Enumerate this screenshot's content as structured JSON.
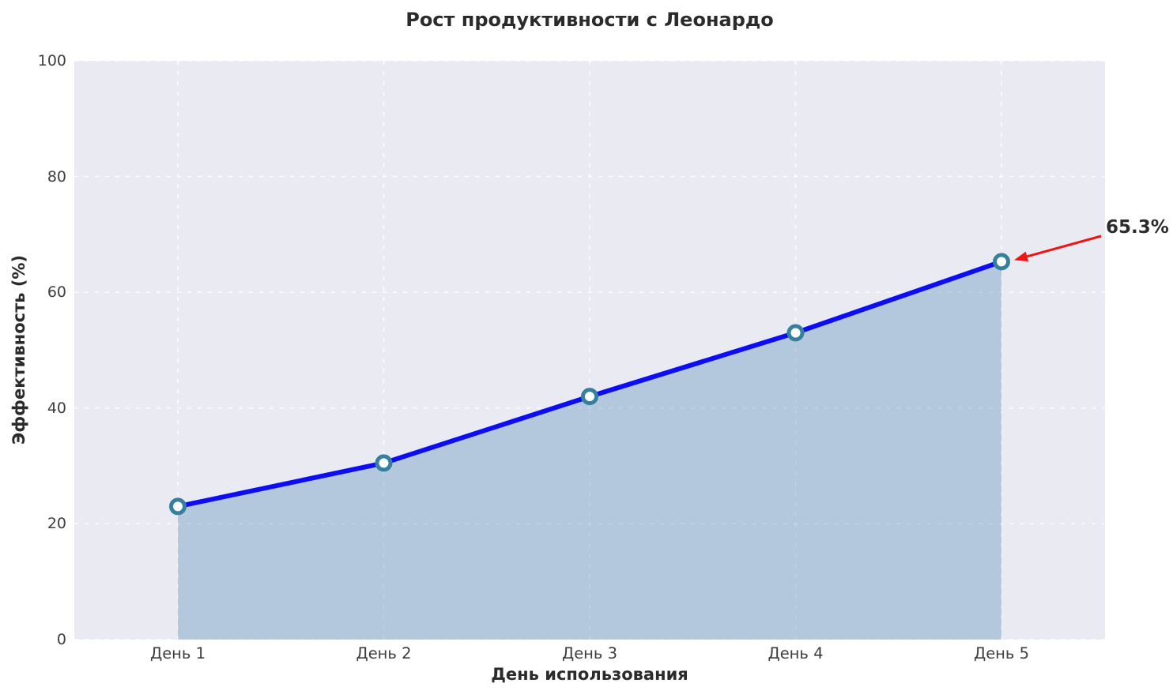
{
  "chart_data": {
    "type": "line",
    "title": "Рост продуктивности с Леонардо",
    "xlabel": "День использования",
    "ylabel": "Эффективность (%)",
    "categories": [
      "День 1",
      "День 2",
      "День 3",
      "День 4",
      "День 5"
    ],
    "values": [
      23,
      30.5,
      42,
      53,
      65.3
    ],
    "ylim": [
      0,
      100
    ],
    "yticks": [
      0,
      20,
      40,
      60,
      80,
      100
    ],
    "grid": "dashed-white-both-axes",
    "legend": "none",
    "area_fill": true,
    "annotation": {
      "label": "65.3%",
      "target_index": 4
    },
    "colors": {
      "line": "#0d0df2",
      "marker_face": "#ffffff",
      "marker_edge": "#35809f",
      "fill": "#4682b4",
      "fill_opacity": 0.33,
      "arrow": "#f01414",
      "plot_bg": "#eaeaf2",
      "grid": "#ffffff",
      "title_text": "#2b2b2b",
      "tick_text": "#3d3d3d"
    }
  }
}
